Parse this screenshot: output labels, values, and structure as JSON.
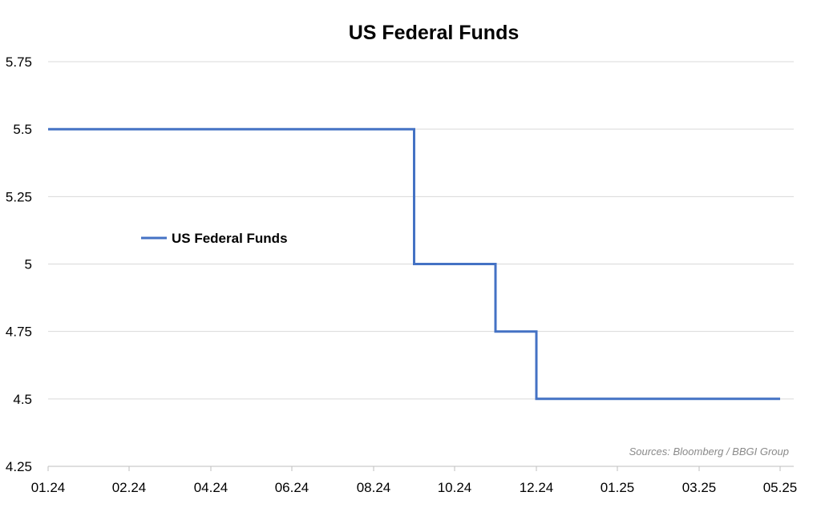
{
  "chart_data": {
    "type": "line",
    "title": "US Federal Funds",
    "xlabel": "",
    "ylabel": "",
    "ylim": [
      4.25,
      5.75
    ],
    "y_ticks": [
      "4.25",
      "4.5",
      "4.75",
      "5",
      "5.25",
      "5.5",
      "5.75"
    ],
    "x_ticks": [
      "01.24",
      "02.24",
      "04.24",
      "06.24",
      "08.24",
      "10.24",
      "12.24",
      "01.25",
      "03.25",
      "05.25"
    ],
    "grid": true,
    "legend_position": "left-middle",
    "line_style": "step",
    "series": [
      {
        "name": "US Federal Funds",
        "color": "#4472c4",
        "points": [
          {
            "x": "01.24",
            "y": 5.5
          },
          {
            "x": "09.24",
            "y": 5.5
          },
          {
            "x": "09.24",
            "y": 5.0
          },
          {
            "x": "11.24",
            "y": 5.0
          },
          {
            "x": "11.24",
            "y": 4.75
          },
          {
            "x": "12.24",
            "y": 4.75
          },
          {
            "x": "12.24",
            "y": 4.5
          },
          {
            "x": "05.25",
            "y": 4.5
          }
        ]
      }
    ],
    "source_note": "Sources: Bloomberg / BBGI Group"
  }
}
